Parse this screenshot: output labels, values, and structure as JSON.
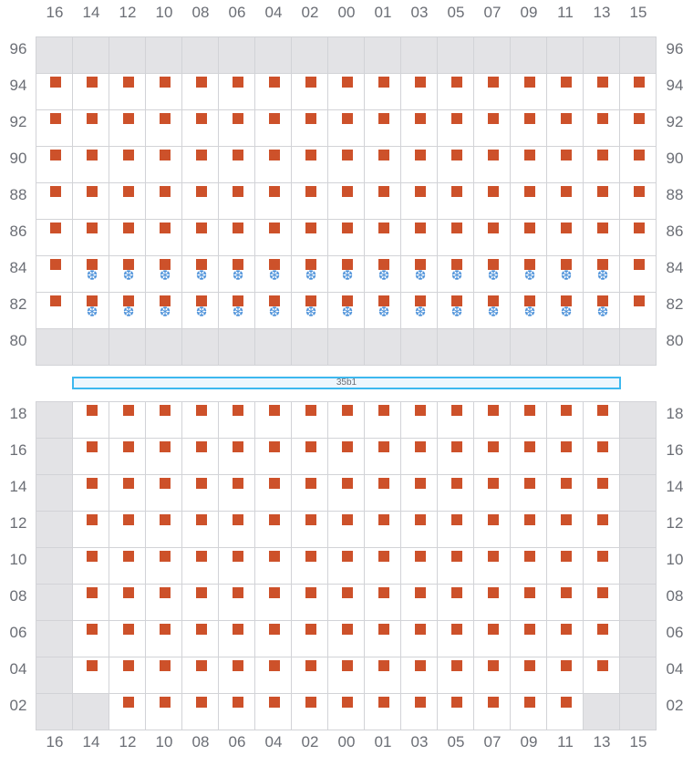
{
  "columns": [
    "16",
    "14",
    "12",
    "10",
    "08",
    "06",
    "04",
    "02",
    "00",
    "01",
    "03",
    "05",
    "07",
    "09",
    "11",
    "13",
    "15"
  ],
  "top_section": {
    "rows": [
      {
        "label": "96",
        "cells": "ggggggggggggggggg"
      },
      {
        "label": "94",
        "cells": "sssssssssssssssss"
      },
      {
        "label": "92",
        "cells": "sssssssssssssssss"
      },
      {
        "label": "90",
        "cells": "sssssssssssssssss"
      },
      {
        "label": "88",
        "cells": "sssssssssssssssss"
      },
      {
        "label": "86",
        "cells": "sssssssssssssssss"
      },
      {
        "label": "84",
        "cells": "sfffffffffffffffs"
      },
      {
        "label": "82",
        "cells": "sfffffffffffffffs"
      },
      {
        "label": "80",
        "cells": "ggggggggggggggggg"
      }
    ]
  },
  "banner": {
    "label": "35b1"
  },
  "bottom_section": {
    "rows": [
      {
        "label": "18",
        "cells": "gsssssssssssssssg"
      },
      {
        "label": "16",
        "cells": "gsssssssssssssssg"
      },
      {
        "label": "14",
        "cells": "gsssssssssssssssg"
      },
      {
        "label": "12",
        "cells": "gsssssssssssssssg"
      },
      {
        "label": "10",
        "cells": "gsssssssssssssssg"
      },
      {
        "label": "08",
        "cells": "gsssssssssssssssg"
      },
      {
        "label": "06",
        "cells": "gsssssssssssssssg"
      },
      {
        "label": "04",
        "cells": "gsssssssssssssssg"
      },
      {
        "label": "02",
        "cells": "ggsssssssssssssgg"
      }
    ]
  },
  "legend_codes": {
    "g": "unavailable",
    "s": "occupied",
    "f": "occupied-frozen"
  },
  "icons": {
    "occupied": "square-marker-icon",
    "frozen": "snowflake-icon"
  },
  "colors": {
    "occupied": "#cd512a",
    "frozen": "#4a90d9",
    "unavailable": "#e3e3e6",
    "banner_border": "#3db8ef"
  }
}
